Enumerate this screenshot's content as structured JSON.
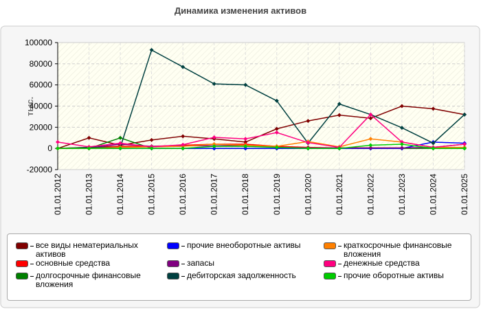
{
  "chart_data": {
    "type": "line",
    "title": "Динамика изменения активов",
    "y_label": "тыс.",
    "categories": [
      "01.01.2012",
      "01.01.2013",
      "01.01.2014",
      "01.01.2015",
      "01.01.2016",
      "01.01.2017",
      "01.01.2018",
      "01.01.2019",
      "01.01.2020",
      "01.01.2021",
      "01.01.2022",
      "01.01.2023",
      "01.01.2024",
      "01.01.2025"
    ],
    "ylim": [
      -20000,
      100000
    ],
    "yticks": [
      -20000,
      0,
      20000,
      40000,
      60000,
      80000,
      100000
    ],
    "grid": true,
    "series": [
      {
        "name": "все виды нематериальных активов",
        "color": "#800000",
        "values": [
          0,
          10000,
          3000,
          8000,
          11500,
          9000,
          6000,
          18500,
          26000,
          31500,
          28500,
          40000,
          37500,
          32000
        ]
      },
      {
        "name": "основные средства",
        "color": "#ff0000",
        "values": [
          0,
          1000,
          2000,
          2000,
          3000,
          4000,
          4000,
          2000,
          1000,
          500,
          500,
          500,
          500,
          500
        ]
      },
      {
        "name": "долгосрочные финансовые вложения",
        "color": "#008000",
        "values": [
          0,
          0,
          10000,
          0,
          0,
          0,
          0,
          0,
          0,
          0,
          0,
          0,
          0,
          0
        ]
      },
      {
        "name": "прочие внеоборотные активы",
        "color": "#0000ff",
        "values": [
          0,
          0,
          0,
          0,
          0,
          0,
          0,
          0,
          0,
          0,
          0,
          0,
          6000,
          5000
        ]
      },
      {
        "name": "запасы",
        "color": "#800080",
        "values": [
          0,
          500,
          4000,
          2000,
          2500,
          2500,
          3000,
          1000,
          500,
          500,
          500,
          500,
          1000,
          4000
        ]
      },
      {
        "name": "дебиторская задолженность",
        "color": "#004040",
        "values": [
          0,
          1000,
          1000,
          93000,
          77000,
          61000,
          60000,
          45000,
          5000,
          42000,
          32000,
          19500,
          5000,
          32000
        ]
      },
      {
        "name": "краткосрочные финансовые вложения",
        "color": "#ff8000",
        "values": [
          0,
          0,
          1000,
          1500,
          2000,
          4000,
          3000,
          2000,
          6500,
          1500,
          9000,
          6000,
          1000,
          1000
        ]
      },
      {
        "name": "денежные средства",
        "color": "#ff0080",
        "values": [
          6000,
          1500,
          5000,
          1500,
          3500,
          10500,
          9000,
          15000,
          5500,
          1000,
          32000,
          6000,
          1000,
          4000
        ]
      },
      {
        "name": "прочие оборотные активы",
        "color": "#00cc00",
        "values": [
          0,
          0,
          0,
          0,
          0,
          2000,
          2000,
          1000,
          0,
          0,
          3000,
          4000,
          0,
          0
        ]
      }
    ]
  }
}
